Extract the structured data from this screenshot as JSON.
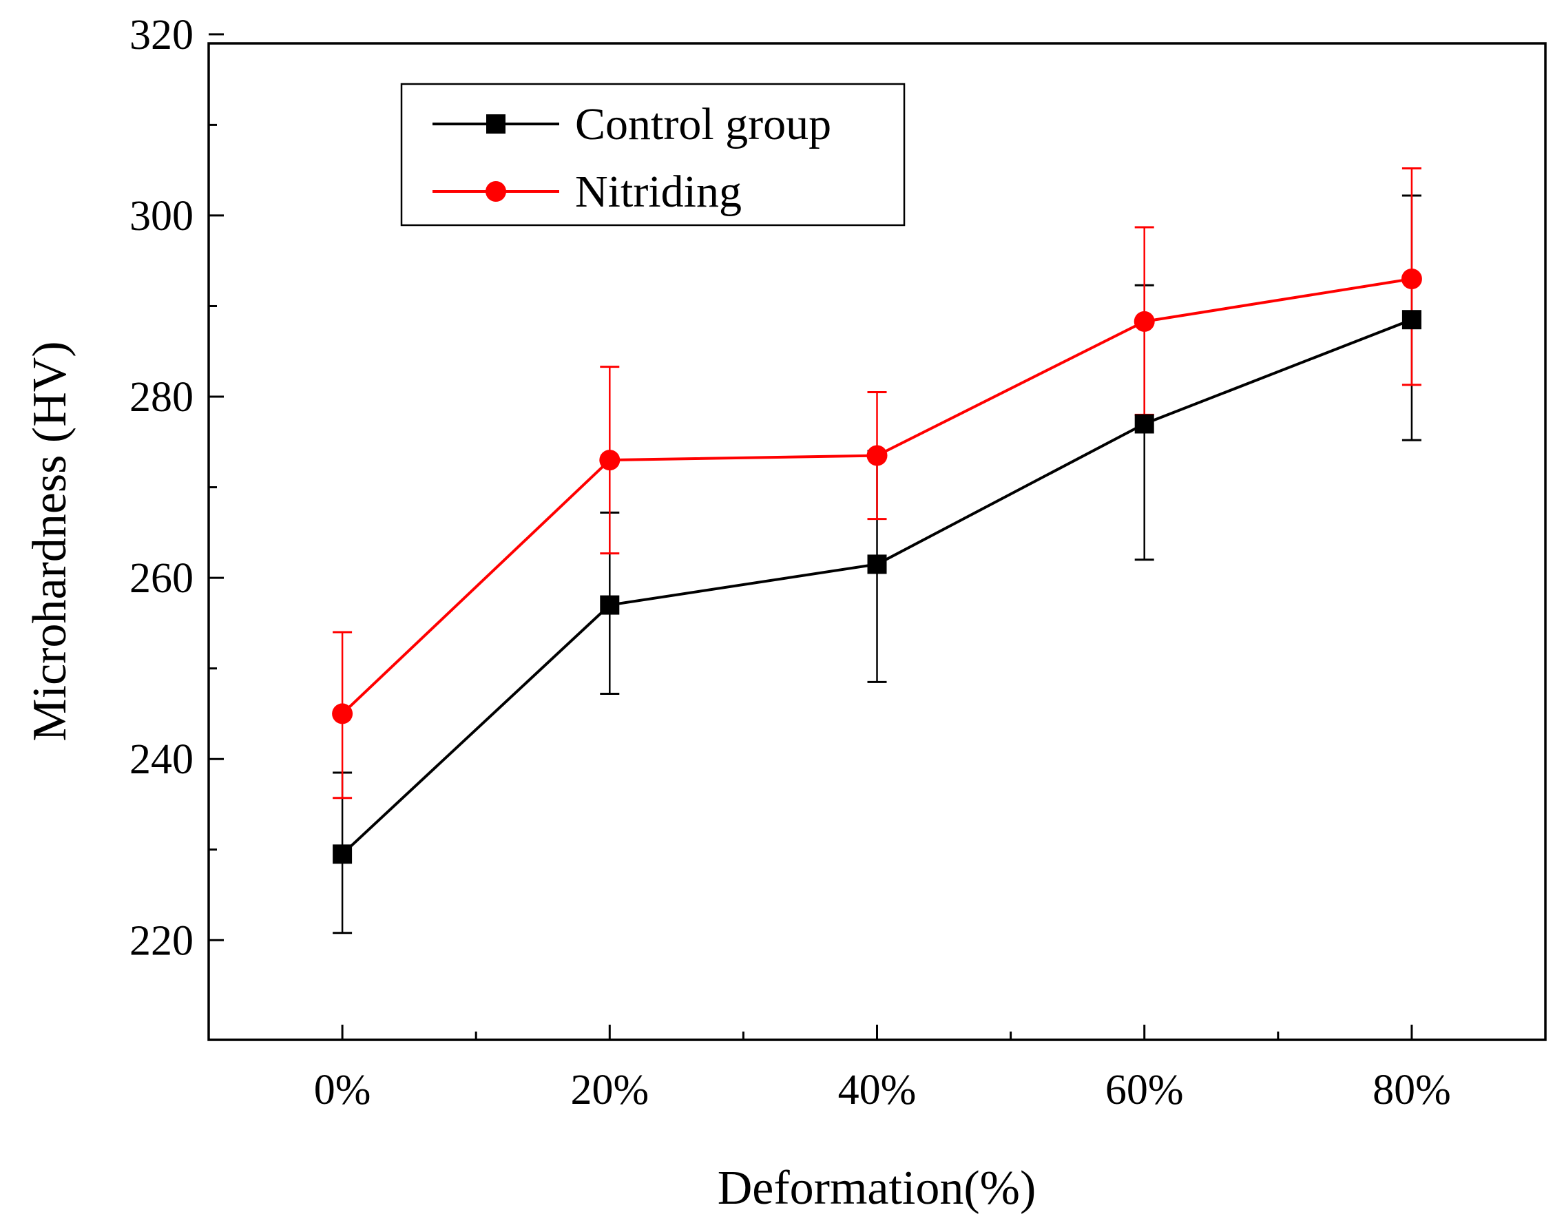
{
  "chart_data": {
    "type": "line",
    "title": "",
    "xlabel": "Deformation(%)",
    "ylabel": "Microhardness (HV)",
    "categories": [
      "0%",
      "20%",
      "40%",
      "60%",
      "80%"
    ],
    "xlim": [
      -0.5,
      4.5
    ],
    "ylim": [
      209,
      319
    ],
    "yticks": [
      220,
      240,
      260,
      280,
      300,
      320
    ],
    "yticks_minor": [
      230,
      250,
      270,
      290,
      310
    ],
    "xticks_minor": [
      0.5,
      1.5,
      2.5,
      3.5
    ],
    "legend_position": "top-left",
    "series": [
      {
        "name": "Control group",
        "color": "#000000",
        "marker": "square",
        "values": [
          229.5,
          257.0,
          261.5,
          277.0,
          288.5
        ],
        "err_low": [
          220.8,
          247.2,
          248.5,
          262.0,
          275.2
        ],
        "err_high": [
          238.5,
          267.2,
          274.0,
          292.3,
          302.2
        ]
      },
      {
        "name": "Nitriding",
        "color": "#ff0000",
        "marker": "circle",
        "values": [
          245.0,
          273.0,
          273.5,
          288.3,
          293.0
        ],
        "err_low": [
          235.7,
          262.7,
          266.5,
          278.0,
          281.3
        ],
        "err_high": [
          254.0,
          283.3,
          280.5,
          298.7,
          305.2
        ]
      }
    ]
  }
}
